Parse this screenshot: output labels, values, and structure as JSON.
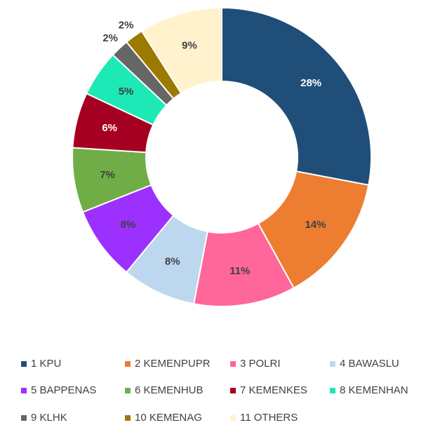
{
  "chart_data": {
    "type": "donut",
    "categories": [
      "1 KPU",
      "2 KEMENPUPR",
      "3 POLRI",
      "4 BAWASLU",
      "5 BAPPENAS",
      "6 KEMENHUB",
      "7 KEMENKES",
      "8 KEMENHAN",
      "9 KLHK",
      "10 KEMENAG",
      "11 OTHERS"
    ],
    "values": [
      28,
      14,
      11,
      8,
      8,
      7,
      6,
      5,
      2,
      2,
      9
    ],
    "value_labels": [
      "28%",
      "14%",
      "11%",
      "8%",
      "8%",
      "7%",
      "6%",
      "5%",
      "2%",
      "2%",
      "9%"
    ],
    "colors": [
      "#1f4e79",
      "#ed7d31",
      "#ff6699",
      "#bdd7ee",
      "#9b30ff",
      "#70ad47",
      "#a50021",
      "#1de9b6",
      "#666666",
      "#9c7a00",
      "#fff2cc"
    ],
    "legend": "bottom"
  }
}
